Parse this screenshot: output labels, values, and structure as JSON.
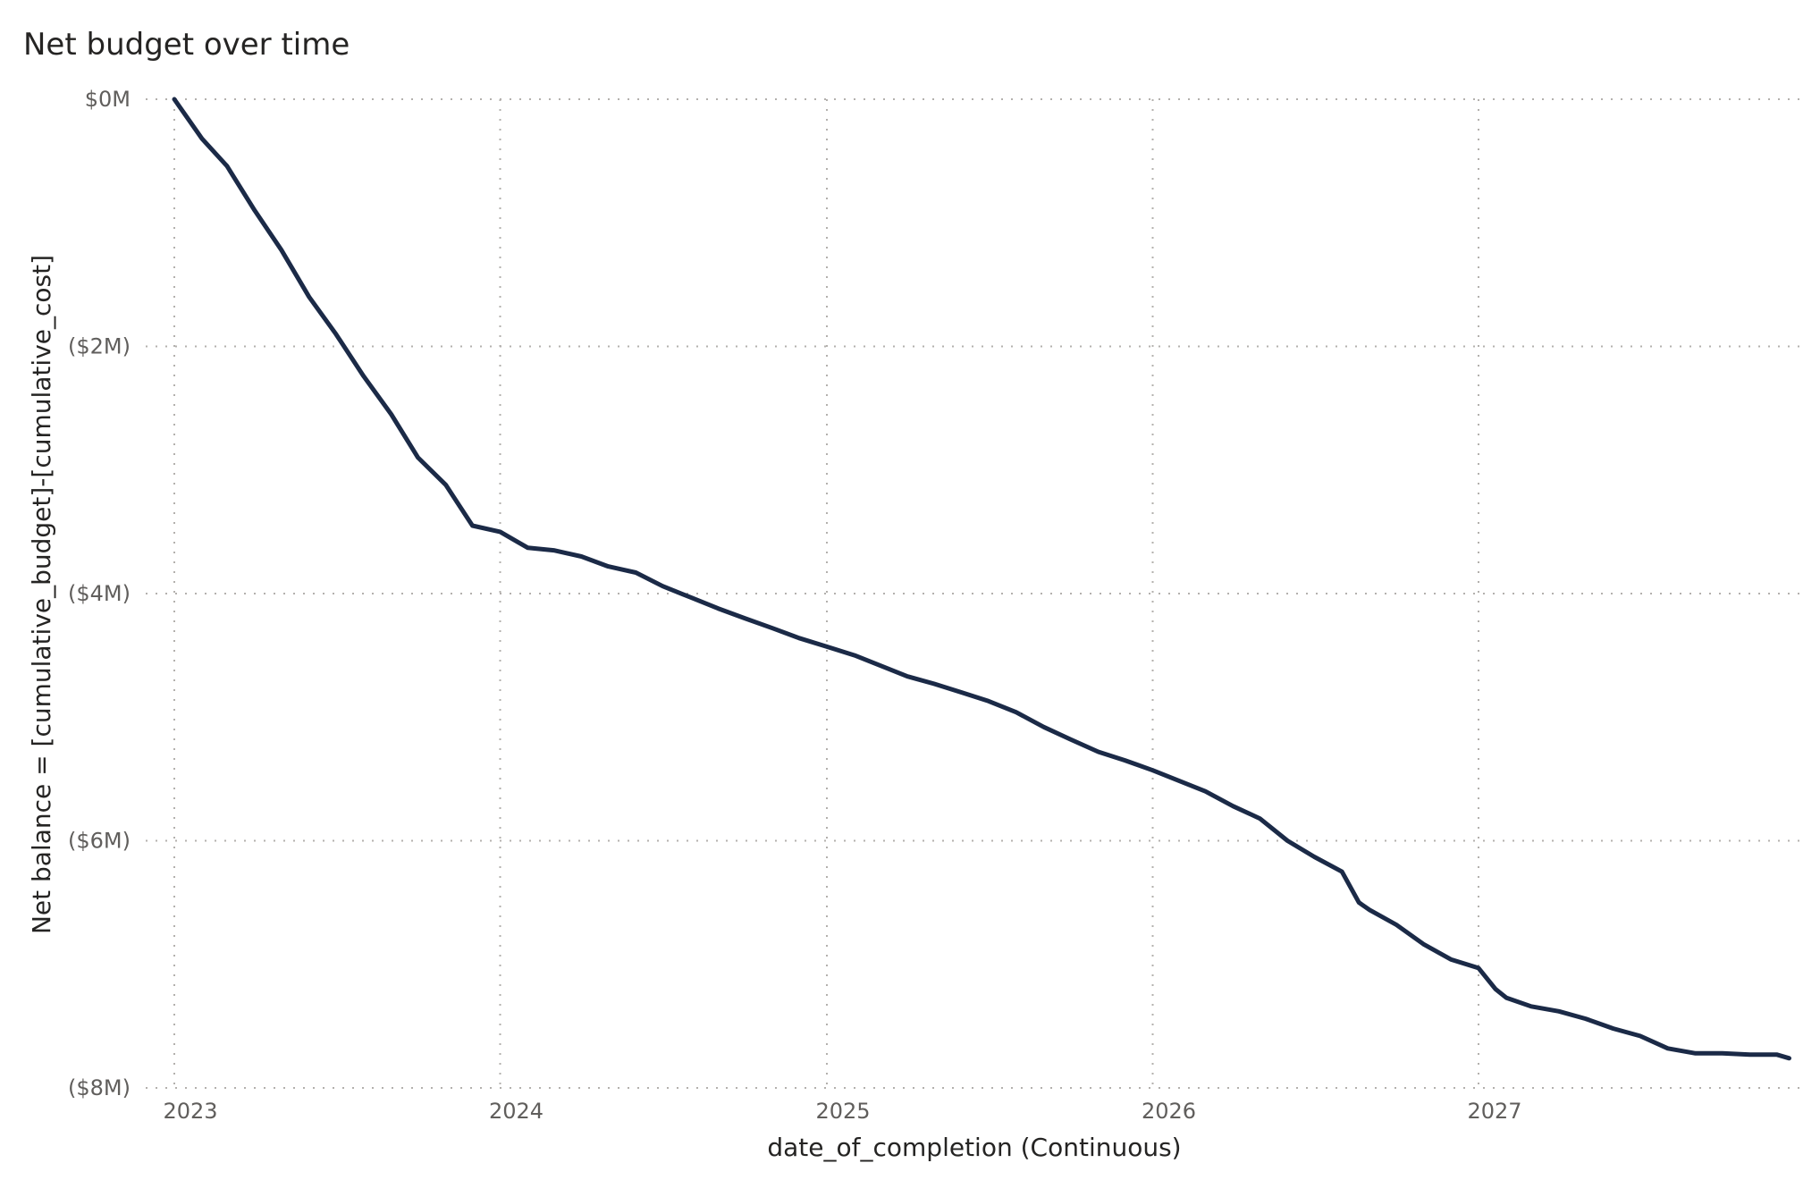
{
  "chart_data": {
    "type": "line",
    "title": "Net budget over time",
    "xlabel": "date_of_completion (Continuous)",
    "ylabel": "Net balance = [cumulative_budget]-[cumulative_cost]",
    "x_tick_labels": [
      "2023",
      "2024",
      "2025",
      "2026",
      "2027"
    ],
    "y_tick_labels": [
      "$0M",
      "($2M)",
      "($4M)",
      "($6M)",
      "($8M)"
    ],
    "y_tick_values": [
      0,
      -2,
      -4,
      -6,
      -8
    ],
    "xlim": [
      "2023-01-01",
      "2027-12-31"
    ],
    "ylim": [
      -8,
      0
    ],
    "grid": true,
    "line_color": "#1b2a47",
    "series": [
      {
        "x": [
          "2023-01-01",
          "2023-02-01",
          "2023-03-01",
          "2023-04-01",
          "2023-05-01",
          "2023-06-01",
          "2023-07-01",
          "2023-08-01",
          "2023-09-01",
          "2023-10-01",
          "2023-11-01",
          "2023-12-01",
          "2024-01-01",
          "2024-01-20",
          "2024-02-01",
          "2024-03-01",
          "2024-04-01",
          "2024-05-01",
          "2024-06-01",
          "2024-07-01",
          "2024-08-01",
          "2024-09-01",
          "2024-10-01",
          "2024-11-01",
          "2024-12-01",
          "2025-01-01",
          "2025-02-01",
          "2025-03-01",
          "2025-04-01",
          "2025-05-01",
          "2025-06-01",
          "2025-07-01",
          "2025-08-01",
          "2025-09-01",
          "2025-10-01",
          "2025-11-01",
          "2025-12-01",
          "2026-01-01",
          "2026-02-01",
          "2026-03-01",
          "2026-04-01",
          "2026-05-01",
          "2026-06-01",
          "2026-07-01",
          "2026-08-01",
          "2026-08-20",
          "2026-09-01",
          "2026-10-01",
          "2026-11-01",
          "2026-12-01",
          "2027-01-01",
          "2027-01-20",
          "2027-02-01",
          "2027-03-01",
          "2027-04-01",
          "2027-05-01",
          "2027-06-01",
          "2027-07-01",
          "2027-08-01",
          "2027-09-01",
          "2027-10-01",
          "2027-11-01",
          "2027-12-01",
          "2027-12-15"
        ],
        "y": [
          0.0,
          -0.32,
          -0.54,
          -0.9,
          -1.22,
          -1.6,
          -1.9,
          -2.24,
          -2.55,
          -2.9,
          -3.12,
          -3.45,
          -3.5,
          -3.58,
          -3.63,
          -3.65,
          -3.7,
          -3.78,
          -3.83,
          -3.94,
          -4.03,
          -4.12,
          -4.2,
          -4.28,
          -4.36,
          -4.43,
          -4.5,
          -4.58,
          -4.67,
          -4.73,
          -4.8,
          -4.87,
          -4.96,
          -5.08,
          -5.18,
          -5.28,
          -5.35,
          -5.43,
          -5.52,
          -5.6,
          -5.72,
          -5.82,
          -6.0,
          -6.13,
          -6.25,
          -6.5,
          -6.56,
          -6.68,
          -6.84,
          -6.96,
          -7.03,
          -7.2,
          -7.27,
          -7.34,
          -7.38,
          -7.44,
          -7.52,
          -7.58,
          -7.68,
          -7.72,
          -7.72,
          -7.73,
          -7.73,
          -7.76
        ]
      }
    ]
  }
}
